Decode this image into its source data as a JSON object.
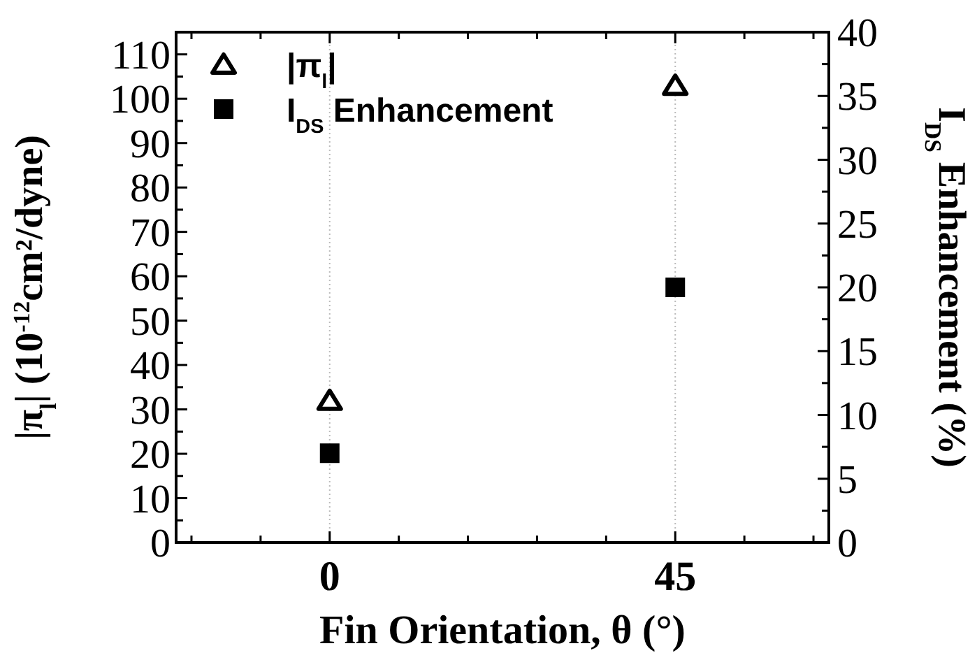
{
  "chart_data": {
    "type": "scatter",
    "xlabel": "Fin Orientation, θ (°)",
    "ylabel": "|π$_{l}$| (10$^{-12}$cm²/dyne)",
    "y2label": "I$_{DS}$ Enhancement (%)",
    "x": [
      0,
      45
    ],
    "xlim": [
      -20,
      65
    ],
    "xticks": [
      {
        "value": -18,
        "label": null
      },
      {
        "value": -9,
        "label": null
      },
      0,
      {
        "value": 9,
        "label": null
      },
      {
        "value": 18,
        "label": null
      },
      {
        "value": 27,
        "label": null
      },
      {
        "value": 36,
        "label": null
      },
      45,
      {
        "value": 54,
        "label": null
      },
      {
        "value": 63,
        "label": null
      }
    ],
    "ylim": [
      0,
      115
    ],
    "yticks": [
      0,
      {
        "value": 5,
        "label": null
      },
      10,
      {
        "value": 15,
        "label": null
      },
      20,
      {
        "value": 25,
        "label": null
      },
      30,
      {
        "value": 35,
        "label": null
      },
      40,
      {
        "value": 45,
        "label": null
      },
      50,
      {
        "value": 55,
        "label": null
      },
      60,
      {
        "value": 65,
        "label": null
      },
      70,
      {
        "value": 75,
        "label": null
      },
      80,
      {
        "value": 85,
        "label": null
      },
      90,
      {
        "value": 95,
        "label": null
      },
      100,
      {
        "value": 105,
        "label": null
      },
      110
    ],
    "y2lim": [
      0,
      40
    ],
    "y2ticks": [
      0,
      {
        "value": 2.5,
        "label": null
      },
      5,
      {
        "value": 7.5,
        "label": null
      },
      10,
      {
        "value": 12.5,
        "label": null
      },
      15,
      {
        "value": 17.5,
        "label": null
      },
      20,
      {
        "value": 22.5,
        "label": null
      },
      25,
      {
        "value": 27.5,
        "label": null
      },
      30,
      {
        "value": 32.5,
        "label": null
      },
      35,
      {
        "value": 37.5,
        "label": null
      },
      40
    ],
    "grid": "x",
    "legend": "top left",
    "series": [
      {
        "name": "|π$_{l}$|",
        "color": "#000000",
        "marker": "triangle",
        "values": [
          32,
          103
        ]
      },
      {
        "name": "I$_{DS}$ Enhancement",
        "color": "#000000",
        "marker": "square",
        "axis": "y2",
        "values": [
          7,
          20
        ]
      }
    ]
  }
}
